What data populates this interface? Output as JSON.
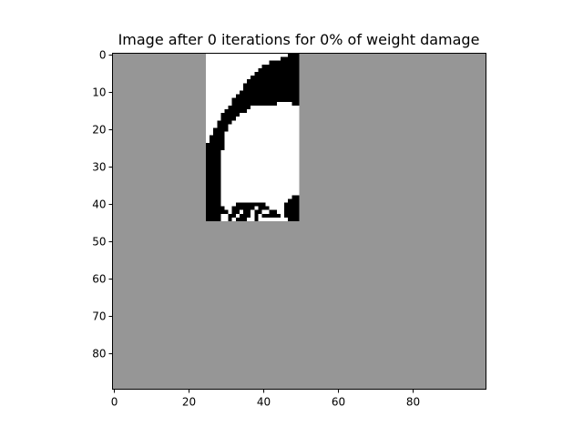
{
  "chart_data": {
    "type": "heatmap",
    "title": "Image after 0 iterations for 0% of weight damage",
    "xlabel": "",
    "ylabel": "",
    "grid": false,
    "legend": "none",
    "image_size": {
      "rows": 90,
      "cols": 100
    },
    "xlim": [
      -0.5,
      99.5
    ],
    "ylim": [
      89.5,
      -0.5
    ],
    "x_ticks": [
      0,
      20,
      40,
      60,
      80
    ],
    "y_ticks": [
      0,
      10,
      20,
      30,
      40,
      50,
      60,
      70,
      80
    ],
    "background_color": "#969696",
    "visible_patch": {
      "row_range": [
        0,
        44
      ],
      "col_range": [
        25,
        49
      ],
      "colors": {
        "white": "#ffffff",
        "black": "#000000"
      },
      "black_pixel_rows": [
        {
          "row": 0,
          "segments": [
            [
              47,
              49
            ]
          ]
        },
        {
          "row": 1,
          "segments": [
            [
              45,
              49
            ]
          ]
        },
        {
          "row": 2,
          "segments": [
            [
              42,
              49
            ]
          ]
        },
        {
          "row": 3,
          "segments": [
            [
              40,
              49
            ]
          ]
        },
        {
          "row": 4,
          "segments": [
            [
              39,
              49
            ]
          ]
        },
        {
          "row": 5,
          "segments": [
            [
              38,
              49
            ]
          ]
        },
        {
          "row": 6,
          "segments": [
            [
              37,
              49
            ]
          ]
        },
        {
          "row": 7,
          "segments": [
            [
              36,
              49
            ]
          ]
        },
        {
          "row": 8,
          "segments": [
            [
              35,
              49
            ]
          ]
        },
        {
          "row": 9,
          "segments": [
            [
              35,
              49
            ]
          ]
        },
        {
          "row": 10,
          "segments": [
            [
              34,
              49
            ]
          ]
        },
        {
          "row": 11,
          "segments": [
            [
              33,
              49
            ]
          ]
        },
        {
          "row": 12,
          "segments": [
            [
              32,
              49
            ]
          ]
        },
        {
          "row": 13,
          "segments": [
            [
              32,
              43
            ],
            [
              48,
              49
            ]
          ]
        },
        {
          "row": 14,
          "segments": [
            [
              31,
              36
            ]
          ]
        },
        {
          "row": 15,
          "segments": [
            [
              30,
              35
            ]
          ]
        },
        {
          "row": 16,
          "segments": [
            [
              29,
              33
            ]
          ]
        },
        {
          "row": 17,
          "segments": [
            [
              29,
              32
            ]
          ]
        },
        {
          "row": 18,
          "segments": [
            [
              28,
              31
            ]
          ]
        },
        {
          "row": 19,
          "segments": [
            [
              28,
              30
            ]
          ]
        },
        {
          "row": 20,
          "segments": [
            [
              27,
              30
            ]
          ]
        },
        {
          "row": 21,
          "segments": [
            [
              27,
              29
            ]
          ]
        },
        {
          "row": 22,
          "segments": [
            [
              26,
              29
            ]
          ]
        },
        {
          "row": 23,
          "segments": [
            [
              26,
              29
            ]
          ]
        },
        {
          "row": 24,
          "segments": [
            [
              25,
              29
            ]
          ]
        },
        {
          "row": 25,
          "segments": [
            [
              25,
              29
            ]
          ]
        },
        {
          "row": 26,
          "segments": [
            [
              25,
              28
            ]
          ]
        },
        {
          "row": 27,
          "segments": [
            [
              25,
              28
            ]
          ]
        },
        {
          "row": 28,
          "segments": [
            [
              25,
              28
            ]
          ]
        },
        {
          "row": 29,
          "segments": [
            [
              25,
              28
            ]
          ]
        },
        {
          "row": 30,
          "segments": [
            [
              25,
              28
            ]
          ]
        },
        {
          "row": 31,
          "segments": [
            [
              25,
              28
            ]
          ]
        },
        {
          "row": 32,
          "segments": [
            [
              25,
              28
            ]
          ]
        },
        {
          "row": 33,
          "segments": [
            [
              25,
              28
            ]
          ]
        },
        {
          "row": 34,
          "segments": [
            [
              25,
              28
            ]
          ]
        },
        {
          "row": 35,
          "segments": [
            [
              25,
              28
            ]
          ]
        },
        {
          "row": 36,
          "segments": [
            [
              25,
              28
            ]
          ]
        },
        {
          "row": 37,
          "segments": [
            [
              25,
              28
            ]
          ]
        },
        {
          "row": 38,
          "segments": [
            [
              25,
              28
            ],
            [
              48,
              49
            ]
          ]
        },
        {
          "row": 39,
          "segments": [
            [
              25,
              28
            ],
            [
              47,
              49
            ]
          ]
        },
        {
          "row": 40,
          "segments": [
            [
              25,
              28
            ],
            [
              33,
              40
            ],
            [
              46,
              49
            ]
          ]
        },
        {
          "row": 41,
          "segments": [
            [
              25,
              29
            ],
            [
              32,
              37
            ],
            [
              39,
              41
            ],
            [
              46,
              49
            ]
          ]
        },
        {
          "row": 42,
          "segments": [
            [
              25,
              30
            ],
            [
              32,
              33
            ],
            [
              35,
              36
            ],
            [
              38,
              39
            ],
            [
              42,
              43
            ],
            [
              46,
              49
            ]
          ]
        },
        {
          "row": 43,
          "segments": [
            [
              25,
              28
            ],
            [
              31,
              32
            ],
            [
              34,
              36
            ],
            [
              38,
              38
            ],
            [
              40,
              44
            ],
            [
              46,
              49
            ]
          ]
        },
        {
          "row": 44,
          "segments": [
            [
              25,
              28
            ],
            [
              31,
              31
            ],
            [
              33,
              35
            ],
            [
              38,
              38
            ],
            [
              47,
              49
            ]
          ]
        }
      ]
    }
  }
}
